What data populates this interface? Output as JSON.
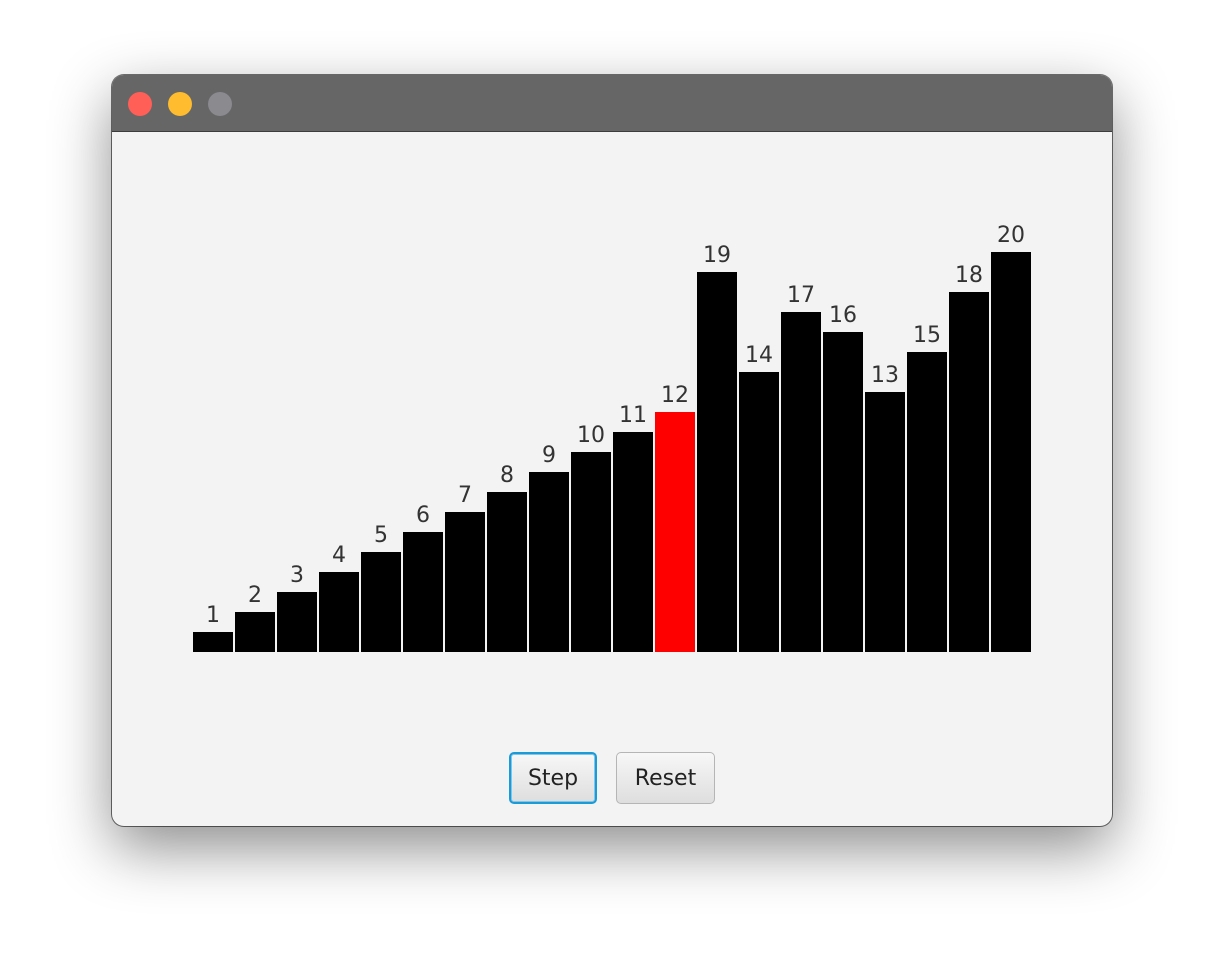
{
  "window": {
    "traffic_lights": [
      {
        "name": "close",
        "color": "#ff5f57"
      },
      {
        "name": "minimize",
        "color": "#febc2e"
      },
      {
        "name": "zoom",
        "color": "#8a8a8f"
      }
    ]
  },
  "chart_data": {
    "type": "bar",
    "title": "",
    "xlabel": "",
    "ylabel": "",
    "grid": false,
    "highlight_color": "#ff0000",
    "bar_color": "#000000",
    "highlighted_index": 11,
    "values": [
      1,
      2,
      3,
      4,
      5,
      6,
      7,
      8,
      9,
      10,
      11,
      12,
      19,
      14,
      17,
      16,
      13,
      15,
      18,
      20
    ],
    "labels": [
      "1",
      "2",
      "3",
      "4",
      "5",
      "6",
      "7",
      "8",
      "9",
      "10",
      "11",
      "12",
      "19",
      "14",
      "17",
      "16",
      "13",
      "15",
      "18",
      "20"
    ]
  },
  "buttons": {
    "step_label": "Step",
    "reset_label": "Reset"
  }
}
